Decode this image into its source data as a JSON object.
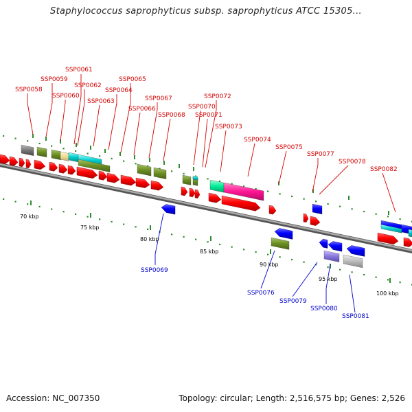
{
  "title": "Staphylococcus saprophyticus subsp. saprophyticus ATCC 15305...",
  "footer": {
    "accession": "Accession: NC_007350",
    "summary": "Topology: circular; Length: 2,516,575 bp; Genes: 2,526"
  },
  "scale_labels": [
    "70 kbp",
    "75 kbp",
    "80 kbp",
    "85 kbp",
    "90 kbp",
    "95 kbp",
    "100 kbp"
  ],
  "forward_gene_labels": [
    "SSP0058",
    "SSP0059",
    "SSP0060",
    "SSP0061",
    "SSP0062",
    "SSP0063",
    "SSP0064",
    "SSP0065",
    "SSP0066",
    "SSP0067",
    "SSP0068",
    "SSP0070",
    "SSP0071",
    "SSP0072",
    "SSP0073",
    "SSP0074",
    "SSP0075",
    "SSP0077",
    "SSP0078",
    "SSP0082"
  ],
  "reverse_gene_labels": [
    "SSP0069",
    "SSP0076",
    "SSP0079",
    "SSP0080",
    "SSP0081"
  ],
  "colors": {
    "forward_cds": "#ff0000",
    "reverse_cds": "#0000ff",
    "backbone": "#888888",
    "tick": "#228b22",
    "cog_olive": "#6b8e23",
    "cog_cyan": "#00cccc",
    "cog_magenta": "#ff1493",
    "cog_spring": "#00ee99",
    "cog_lavender": "#8877dd",
    "cog_gray": "#777777",
    "cog_lightgray": "#bbbbbb",
    "cog_khaki": "#eedd99"
  }
}
